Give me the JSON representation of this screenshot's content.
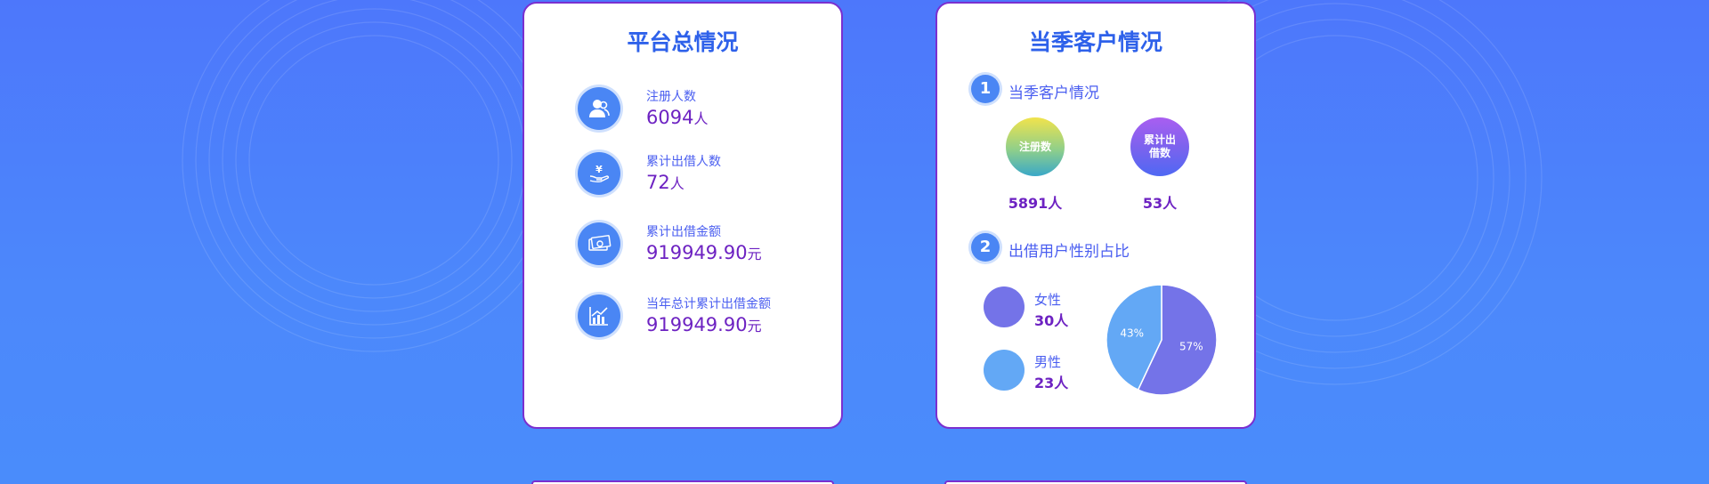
{
  "colors": {
    "background_start": "#4d77fb",
    "background_end": "#4a8cfb",
    "card_border": "#7a2fd0",
    "title_blue": "#2e61ea",
    "label_blue": "#4a5ef0",
    "value_purple": "#6d22c2",
    "icon_blue": "#4a86f4",
    "female": "#7473e8",
    "male": "#63a8f5"
  },
  "platform": {
    "title": "平台总情况",
    "stats": [
      {
        "icon": "users-icon",
        "label": "注册人数",
        "value": "6094",
        "unit": "人"
      },
      {
        "icon": "yen-hand-icon",
        "label": "累计出借人数",
        "value": "72",
        "unit": "人"
      },
      {
        "icon": "cash-icon",
        "label": "累计出借金额",
        "value": "919949.90",
        "unit": "元"
      },
      {
        "icon": "growth-chart-icon",
        "label": "当年总计累计出借金额",
        "value": "919949.90",
        "unit": "元"
      }
    ]
  },
  "season": {
    "title": "当季客户情况",
    "section1": {
      "number": "1",
      "title": "当季客户情况"
    },
    "bubbles": [
      {
        "label": "注册数",
        "value": "5891人"
      },
      {
        "label": "累计出借数",
        "value": "53人"
      }
    ],
    "section2": {
      "number": "2",
      "title": "出借用户性别占比"
    },
    "genders": [
      {
        "label": "女性",
        "count": "30人"
      },
      {
        "label": "男性",
        "count": "23人"
      }
    ]
  },
  "chart_data": {
    "type": "pie",
    "title": "",
    "slices": [
      {
        "name": "女性",
        "value": 57,
        "label": "57%",
        "color": "#7473e8"
      },
      {
        "name": "男性",
        "value": 43,
        "label": "43%",
        "color": "#63a8f5"
      }
    ]
  }
}
